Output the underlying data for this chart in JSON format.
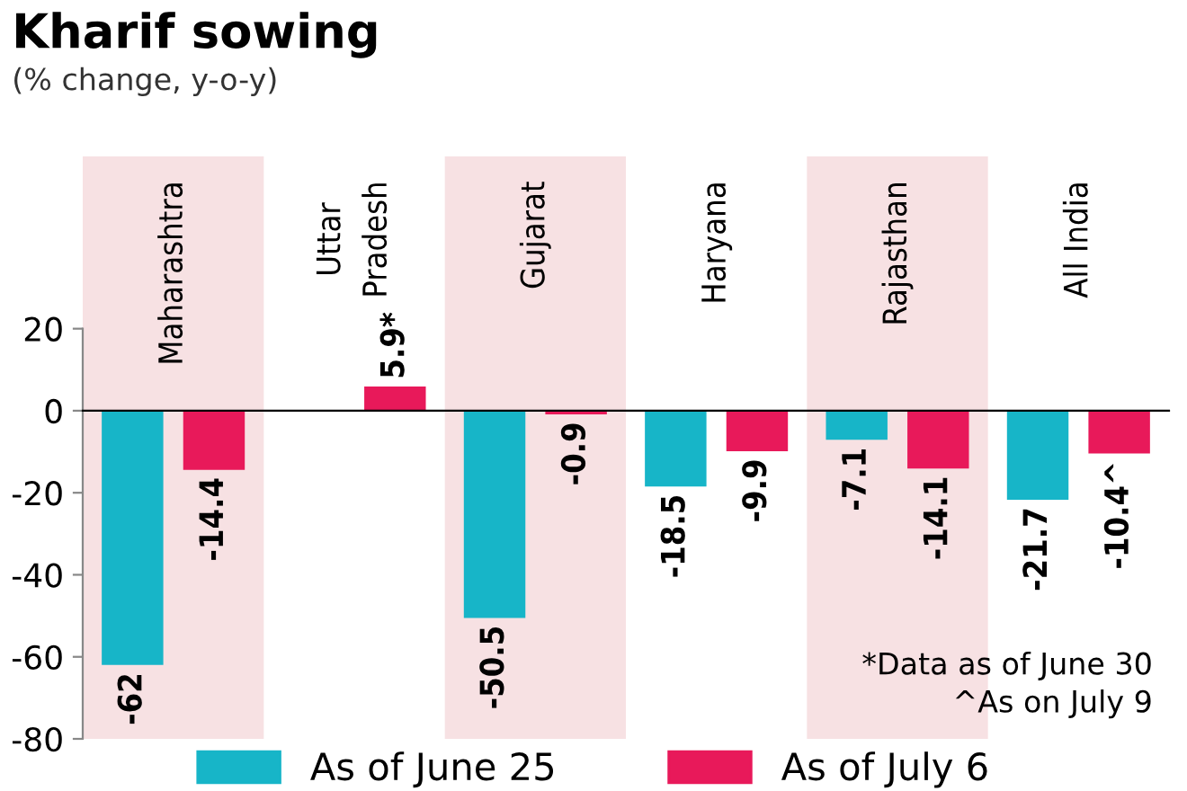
{
  "chart_data": {
    "type": "bar",
    "title": "Kharif sowing",
    "subtitle": "(% change, y-o-y)",
    "categories": [
      "Maharashtra",
      "Uttar\nPradesh",
      "Gujarat",
      "Haryana",
      "Rajasthan",
      "All India"
    ],
    "series": [
      {
        "name": "As of June 25",
        "color": "#17b5c8",
        "values": [
          -62,
          null,
          -50.5,
          -18.5,
          -7.1,
          -21.7
        ],
        "value_labels": [
          "-62",
          null,
          "-50.5",
          "-18.5",
          "-7.1",
          "-21.7"
        ]
      },
      {
        "name": "As of July 6",
        "color": "#e8195a",
        "values": [
          -14.4,
          5.9,
          -0.9,
          -9.9,
          -14.1,
          -10.4
        ],
        "value_labels": [
          "-14.4",
          "5.9*",
          "-0.9",
          "-9.9",
          "-14.1",
          "-10.4^"
        ]
      }
    ],
    "bands": [
      {
        "axis": "x",
        "from": "Maharashtra",
        "to": "Maharashtra",
        "color": "#f7e1e3"
      },
      {
        "axis": "x",
        "from": "Gujarat",
        "to": "Gujarat",
        "color": "#f7e1e3"
      },
      {
        "axis": "x",
        "from": "Rajasthan",
        "to": "Rajasthan",
        "color": "#f7e1e3"
      }
    ],
    "ylim": [
      -80,
      62
    ],
    "yticks": [
      -80,
      -60,
      -40,
      -20,
      0,
      20
    ],
    "grid": false,
    "legend": "bottom",
    "annotations": [
      "*Data as of June 30",
      "^As on July 9"
    ]
  }
}
